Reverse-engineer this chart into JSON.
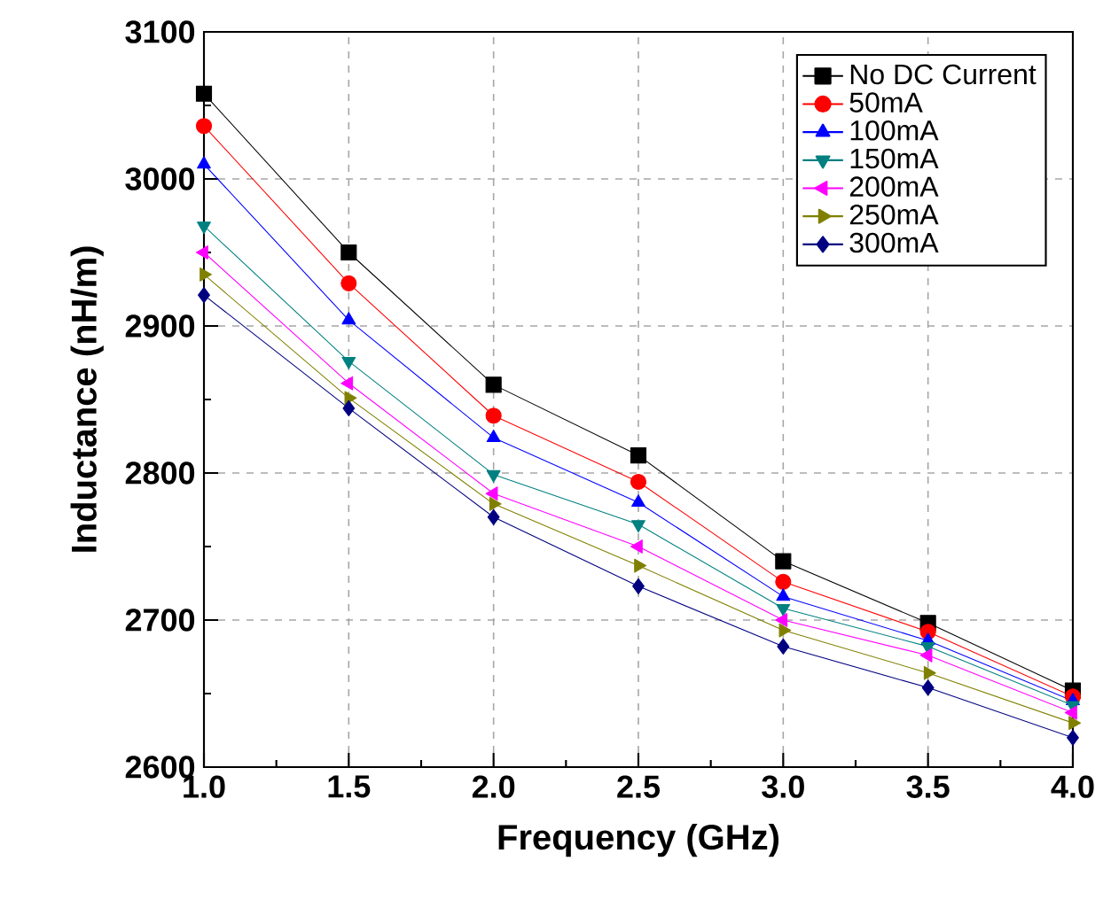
{
  "chart_data": {
    "type": "line",
    "xlabel": "Frequency (GHz)",
    "ylabel": "Inductance (nH/m)",
    "x": [
      1.0,
      1.5,
      2.0,
      2.5,
      3.0,
      3.5,
      4.0
    ],
    "series": [
      {
        "name": "No DC Current",
        "color": "#000000",
        "marker": "square",
        "values": [
          3058,
          2950,
          2860,
          2812,
          2740,
          2698,
          2652
        ]
      },
      {
        "name": "50mA",
        "color": "#ff0000",
        "marker": "circle",
        "values": [
          3036,
          2929,
          2839,
          2794,
          2726,
          2692,
          2648
        ]
      },
      {
        "name": "100mA",
        "color": "#0000ff",
        "marker": "triangle",
        "values": [
          3010,
          2904,
          2824,
          2780,
          2716,
          2686,
          2645
        ]
      },
      {
        "name": "150mA",
        "color": "#008080",
        "marker": "triangle down",
        "values": [
          2968,
          2876,
          2799,
          2765,
          2708,
          2682,
          2642
        ]
      },
      {
        "name": "200mA",
        "color": "#ff00ff",
        "marker": "triangle left",
        "values": [
          2950,
          2861,
          2786,
          2750,
          2700,
          2676,
          2637
        ]
      },
      {
        "name": "250mA",
        "color": "#808000",
        "marker": "triangle right",
        "values": [
          2935,
          2851,
          2779,
          2737,
          2693,
          2664,
          2630
        ]
      },
      {
        "name": "300mA",
        "color": "#000080",
        "marker": "diamond",
        "values": [
          2921,
          2844,
          2770,
          2723,
          2682,
          2654,
          2620
        ]
      }
    ],
    "xlim": [
      1.0,
      4.0
    ],
    "ylim": [
      2600,
      3100
    ],
    "xticks": [
      {
        "value": 1.0,
        "label": "1.0"
      },
      {
        "value": 1.5,
        "label": "1.5"
      },
      {
        "value": 2.0,
        "label": "2.0"
      },
      {
        "value": 2.5,
        "label": "2.5"
      },
      {
        "value": 3.0,
        "label": "3.0"
      },
      {
        "value": 3.5,
        "label": "3.5"
      },
      {
        "value": 4.0,
        "label": "4.0"
      }
    ],
    "yticks": [
      2600,
      2700,
      2800,
      2900,
      3000,
      3100
    ],
    "grid": true,
    "legend": "top right",
    "line_style": "solid"
  }
}
